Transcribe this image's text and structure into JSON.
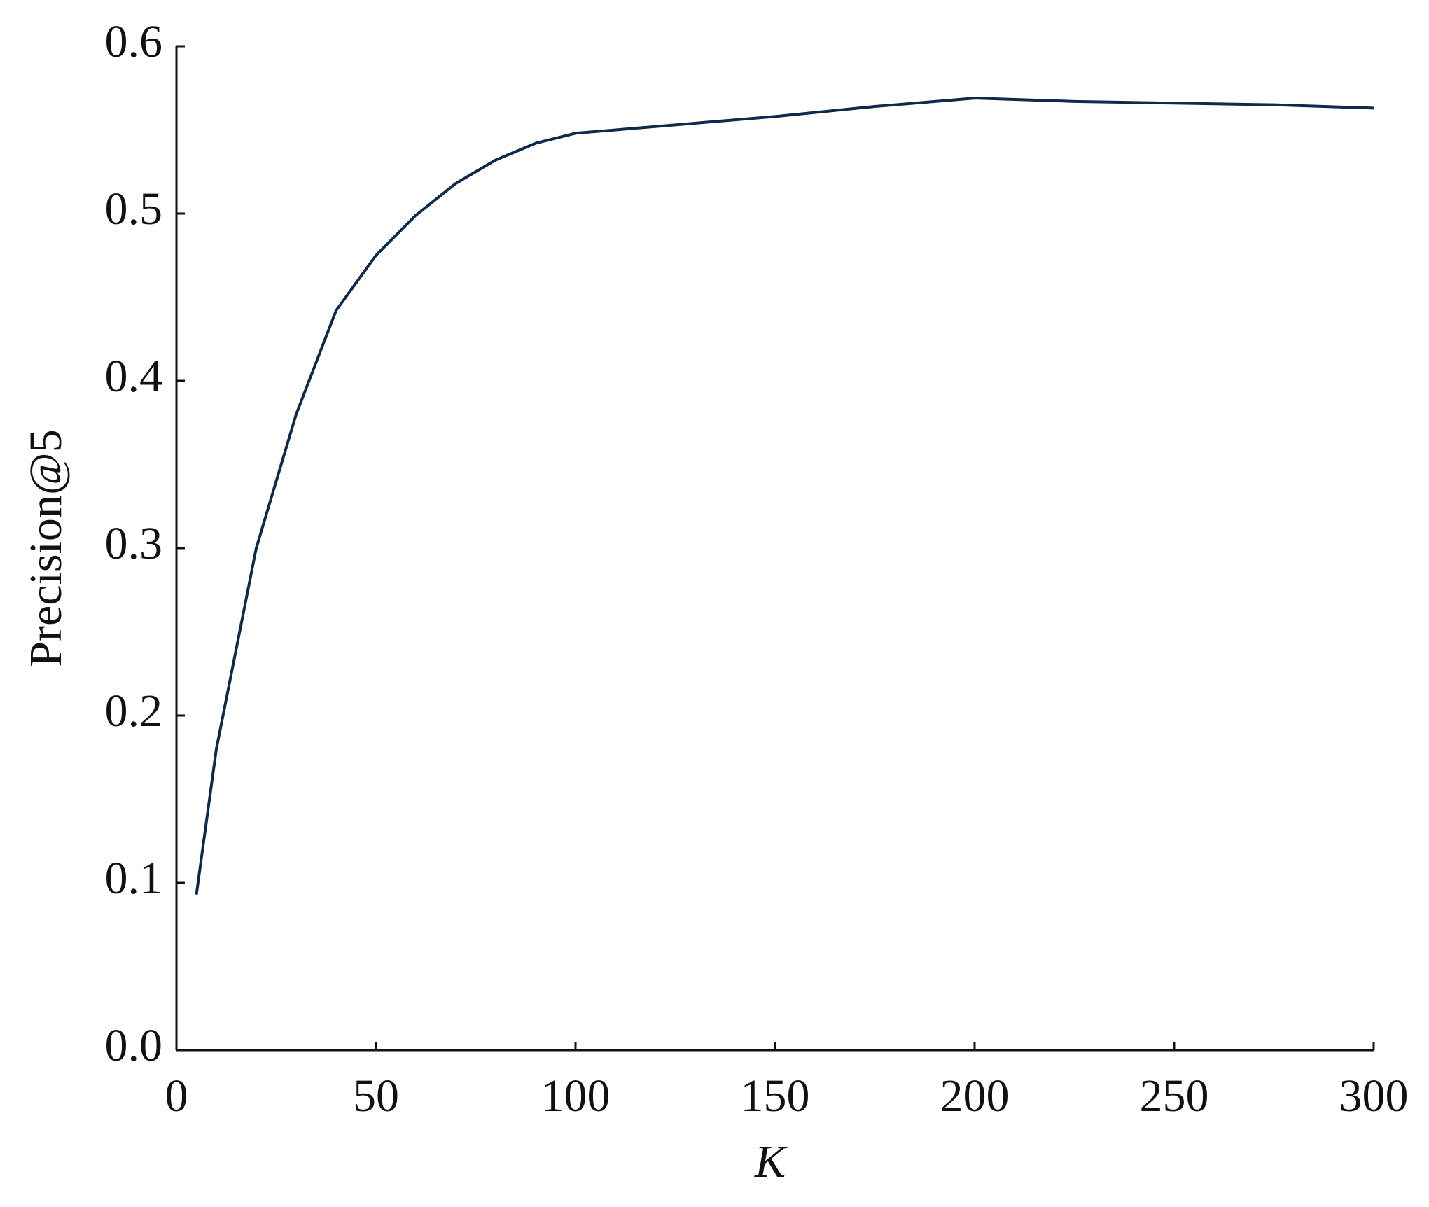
{
  "chart_data": {
    "type": "line",
    "x_label": "K",
    "y_label": "Precision@5",
    "x": [
      5,
      10,
      20,
      30,
      40,
      50,
      60,
      70,
      80,
      90,
      100,
      125,
      150,
      175,
      200,
      225,
      250,
      275,
      300
    ],
    "series": [
      {
        "name": "Precision@5",
        "color": "#0d2a4a",
        "values": [
          0.093,
          0.18,
          0.3,
          0.38,
          0.442,
          0.475,
          0.499,
          0.518,
          0.532,
          0.542,
          0.548,
          0.553,
          0.558,
          0.564,
          0.569,
          0.567,
          0.566,
          0.565,
          0.563
        ]
      }
    ],
    "xlim": [
      0,
      300
    ],
    "xticks": [
      0,
      50,
      100,
      150,
      200,
      250,
      300
    ],
    "ylim": [
      0,
      0.6
    ],
    "yticks": [
      {
        "value": 0,
        "label": "0.0"
      },
      0.1,
      0.2,
      0.3,
      0.4,
      0.5,
      0.6
    ],
    "grid": false
  }
}
